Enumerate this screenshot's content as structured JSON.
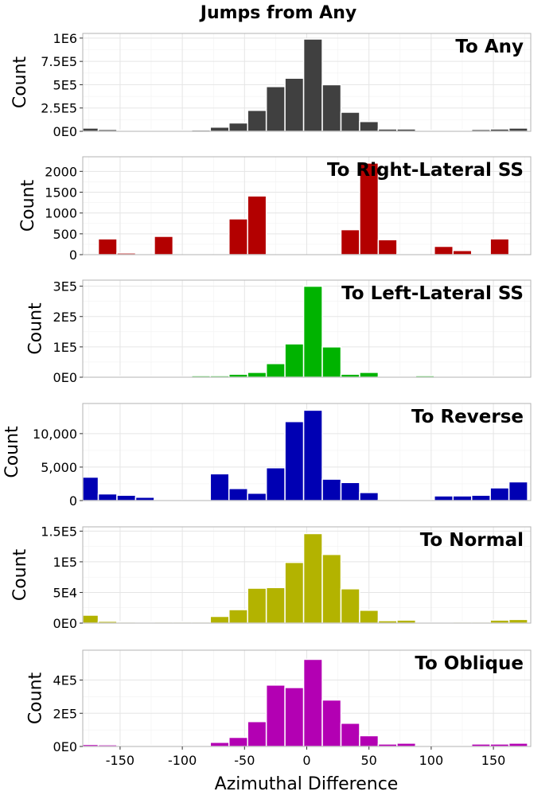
{
  "title": "Jumps from Any",
  "xlabel": "Azimuthal Difference",
  "ylabel": "Count",
  "x_ticks": [
    -150,
    -100,
    -50,
    0,
    50,
    100,
    150
  ],
  "x_tick_labels": [
    "-150",
    "-100",
    "-50",
    "0",
    "50",
    "100",
    "150"
  ],
  "chart_data": [
    {
      "type": "bar",
      "title": "To Any",
      "color": "#404040",
      "xlabel": "Azimuthal Difference",
      "ylabel": "Count",
      "xlim": [
        -180,
        180
      ],
      "ylim": [
        0,
        1050000
      ],
      "y_ticks": [
        0,
        250000,
        500000,
        750000,
        1000000
      ],
      "y_tick_labels": [
        "0E0",
        "2.5E5",
        "5E5",
        "7.5E5",
        "1E6"
      ],
      "x": [
        -175,
        -160,
        -145,
        -130,
        -115,
        -100,
        -85,
        -70,
        -55,
        -40,
        -25,
        -10,
        5,
        20,
        35,
        50,
        65,
        80,
        95,
        110,
        125,
        140,
        155,
        170
      ],
      "values": [
        35000,
        20000,
        10000,
        10000,
        10000,
        10000,
        15000,
        45000,
        90000,
        225000,
        480000,
        570000,
        990000,
        500000,
        205000,
        105000,
        25000,
        25000,
        10000,
        10000,
        10000,
        20000,
        25000,
        35000
      ]
    },
    {
      "type": "bar",
      "title": "To Right-Lateral SS",
      "color": "#b30000",
      "xlabel": "Azimuthal Difference",
      "ylabel": "Count",
      "xlim": [
        -180,
        180
      ],
      "ylim": [
        0,
        2350
      ],
      "y_ticks": [
        0,
        500,
        1000,
        1500,
        2000
      ],
      "y_tick_labels": [
        "0",
        "500",
        "1000",
        "1500",
        "2000"
      ],
      "x": [
        -175,
        -160,
        -145,
        -130,
        -115,
        -100,
        -85,
        -70,
        -55,
        -40,
        -25,
        -10,
        5,
        20,
        35,
        50,
        65,
        80,
        95,
        110,
        125,
        140,
        155,
        170
      ],
      "values": [
        0,
        380,
        40,
        0,
        440,
        0,
        0,
        0,
        860,
        1410,
        0,
        0,
        0,
        0,
        600,
        2200,
        360,
        15,
        0,
        200,
        100,
        0,
        380,
        0
      ]
    },
    {
      "type": "bar",
      "title": "To Left-Lateral SS",
      "color": "#00b300",
      "xlabel": "Azimuthal Difference",
      "ylabel": "Count",
      "xlim": [
        -180,
        180
      ],
      "ylim": [
        0,
        320000
      ],
      "y_ticks": [
        0,
        100000,
        200000,
        300000
      ],
      "y_tick_labels": [
        "0E0",
        "1E5",
        "2E5",
        "3E5"
      ],
      "x": [
        -175,
        -160,
        -145,
        -130,
        -115,
        -100,
        -85,
        -70,
        -55,
        -40,
        -25,
        -10,
        5,
        20,
        35,
        50,
        65,
        80,
        95,
        110,
        125,
        140,
        155,
        170
      ],
      "values": [
        3000,
        3000,
        3000,
        2000,
        2000,
        2000,
        5000,
        5000,
        10000,
        16000,
        45000,
        110000,
        300000,
        100000,
        10000,
        16000,
        2000,
        2000,
        5000,
        2000,
        2000,
        3000,
        3000,
        3000
      ]
    },
    {
      "type": "bar",
      "title": "To Reverse",
      "color": "#0000b3",
      "xlabel": "Azimuthal Difference",
      "ylabel": "Count",
      "xlim": [
        -180,
        180
      ],
      "ylim": [
        0,
        14500
      ],
      "y_ticks": [
        0,
        5000,
        10000
      ],
      "y_tick_labels": [
        "0",
        "5,000",
        "10,000"
      ],
      "x": [
        -175,
        -160,
        -145,
        -130,
        -115,
        -100,
        -85,
        -70,
        -55,
        -40,
        -25,
        -10,
        5,
        20,
        35,
        50,
        65,
        80,
        95,
        110,
        125,
        140,
        155,
        170
      ],
      "values": [
        3500,
        1000,
        800,
        500,
        100,
        100,
        100,
        4000,
        1800,
        1100,
        4900,
        11800,
        13500,
        3200,
        2700,
        1200,
        100,
        100,
        100,
        700,
        700,
        800,
        1900,
        2800
      ]
    },
    {
      "type": "bar",
      "title": "To Normal",
      "color": "#b3b300",
      "xlabel": "Azimuthal Difference",
      "ylabel": "Count",
      "xlim": [
        -180,
        180
      ],
      "ylim": [
        0,
        157000
      ],
      "y_ticks": [
        0,
        50000,
        100000,
        150000
      ],
      "y_tick_labels": [
        "0E0",
        "5E4",
        "1E5",
        "1.5E5"
      ],
      "x": [
        -175,
        -160,
        -145,
        -130,
        -115,
        -100,
        -85,
        -70,
        -55,
        -40,
        -25,
        -10,
        5,
        20,
        35,
        50,
        65,
        80,
        95,
        110,
        125,
        140,
        155,
        170
      ],
      "values": [
        13000,
        3000,
        2000,
        1000,
        2000,
        2000,
        2000,
        11000,
        22000,
        57000,
        58000,
        99000,
        146000,
        112000,
        56000,
        21000,
        4000,
        5000,
        1000,
        1000,
        2000,
        2000,
        5000,
        6000
      ]
    },
    {
      "type": "bar",
      "title": "To Oblique",
      "color": "#b300b3",
      "xlabel": "Azimuthal Difference",
      "ylabel": "Count",
      "xlim": [
        -180,
        180
      ],
      "ylim": [
        0,
        580000
      ],
      "y_ticks": [
        0,
        200000,
        400000
      ],
      "y_tick_labels": [
        "0E0",
        "2E5",
        "4E5"
      ],
      "x": [
        -175,
        -160,
        -145,
        -130,
        -115,
        -100,
        -85,
        -70,
        -55,
        -40,
        -25,
        -10,
        5,
        20,
        35,
        50,
        65,
        80,
        95,
        110,
        125,
        140,
        155,
        170
      ],
      "values": [
        12000,
        10000,
        5000,
        5000,
        5000,
        5000,
        5000,
        25000,
        55000,
        150000,
        370000,
        355000,
        525000,
        280000,
        140000,
        65000,
        15000,
        20000,
        5000,
        5000,
        5000,
        15000,
        15000,
        20000
      ]
    }
  ]
}
